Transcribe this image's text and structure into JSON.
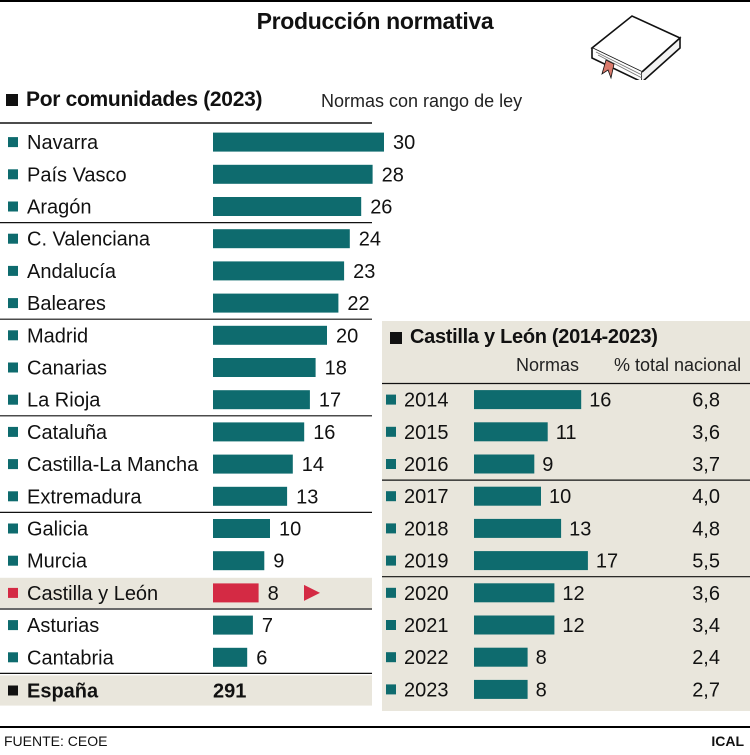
{
  "title": "Producción normativa",
  "colors": {
    "bar": "#0e6b6e",
    "highlight": "#d42a44",
    "panel": "#e9e6dc"
  },
  "source": "FUENTE: CEOE",
  "credit": "ICAL",
  "icons": [
    "book-icon",
    "arrow-right-icon"
  ],
  "chart_data": [
    {
      "type": "bar",
      "orientation": "horizontal",
      "title": "Por comunidades (2023)",
      "units_label": "Normas con rango de ley",
      "categories": [
        "Navarra",
        "País Vasco",
        "Aragón",
        "C. Valenciana",
        "Andalucía",
        "Baleares",
        "Madrid",
        "Canarias",
        "La Rioja",
        "Cataluña",
        "Castilla-La Mancha",
        "Extremadura",
        "Galicia",
        "Murcia",
        "Castilla y León",
        "Asturias",
        "Cantabria"
      ],
      "values": [
        30,
        28,
        26,
        24,
        23,
        22,
        20,
        18,
        17,
        16,
        14,
        13,
        10,
        9,
        8,
        7,
        6
      ],
      "highlight_category": "Castilla y León",
      "total": {
        "label": "España",
        "value": "291"
      }
    },
    {
      "type": "bar",
      "orientation": "horizontal",
      "title": "Castilla y León (2014-2023)",
      "column_headers": [
        "Normas",
        "% total nacional"
      ],
      "categories": [
        "2014",
        "2015",
        "2016",
        "2017",
        "2018",
        "2019",
        "2020",
        "2021",
        "2022",
        "2023"
      ],
      "values": [
        16,
        11,
        9,
        10,
        13,
        17,
        12,
        12,
        8,
        8
      ],
      "percent_labels": [
        "6,8",
        "3,6",
        "3,7",
        "4,0",
        "4,8",
        "5,5",
        "3,6",
        "3,4",
        "2,4",
        "2,7"
      ]
    }
  ]
}
